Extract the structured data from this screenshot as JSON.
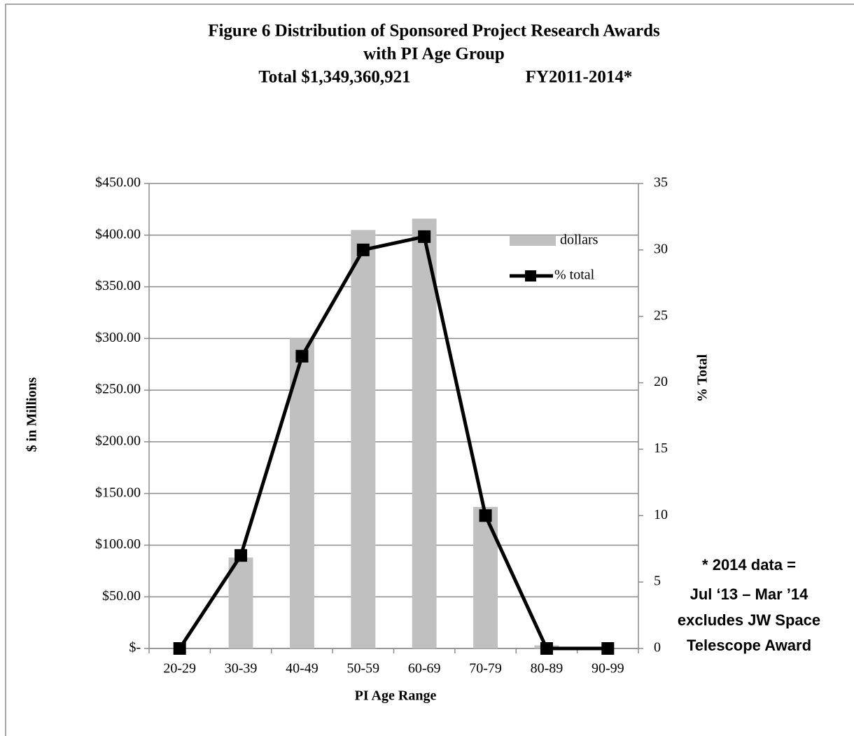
{
  "chart_data": {
    "type": "bar",
    "title": [
      "Figure 6 Distribution of  Sponsored Project Research Awards",
      "with PI Age Group"
    ],
    "subtitle": [
      "Total $1,349,360,921",
      "FY2011-2014*"
    ],
    "x_label": "PI Age Range",
    "y_label": "$ in Millions",
    "y2_label": "% Total",
    "annotation": [
      "* 2014 data =",
      "Jul ‘13 – Mar ’14",
      "excludes JW Space",
      "Telescope Award"
    ],
    "categories": [
      "20-29",
      "30-39",
      "40-49",
      "50-59",
      "60-69",
      "70-79",
      "80-89",
      "90-99"
    ],
    "series": [
      {
        "name": "dollars",
        "type": "bar",
        "color": "#c0c0c0",
        "axis": "y",
        "values": [
          0,
          88,
          300,
          405,
          416,
          137,
          3,
          0
        ]
      },
      {
        "name": "% total",
        "type": "line",
        "color": "#000000",
        "axis": "y2",
        "values": [
          0,
          7,
          22,
          30,
          31,
          10,
          0,
          0
        ]
      }
    ],
    "ylim": [
      0,
      450
    ],
    "yticks": [
      {
        "value": 0,
        "label": "$-"
      },
      {
        "value": 50,
        "label": "$50.00"
      },
      {
        "value": 100,
        "label": "$100.00"
      },
      {
        "value": 150,
        "label": "$150.00"
      },
      {
        "value": 200,
        "label": "$200.00"
      },
      {
        "value": 250,
        "label": "$250.00"
      },
      {
        "value": 300,
        "label": "$300.00"
      },
      {
        "value": 350,
        "label": "$350.00"
      },
      {
        "value": 400,
        "label": "$400.00"
      },
      {
        "value": 450,
        "label": "$450.00"
      }
    ],
    "y2lim": [
      0,
      35
    ],
    "y2ticks": [
      0,
      5,
      10,
      15,
      20,
      25,
      30,
      35
    ],
    "grid": true
  }
}
